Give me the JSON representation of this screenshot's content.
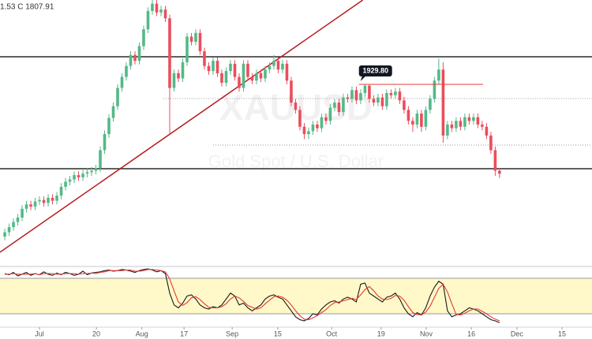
{
  "chart_data": [
    {
      "type": "candlestick",
      "legend_text": "1.53 C 1807.91",
      "watermark": "XAUUSD",
      "watermark_subtitle": "Gold Spot / U.S. Dollar",
      "up_color": "#53b987",
      "down_color": "#eb4d5c",
      "xlim": [
        -1.1,
        135.3
      ],
      "ylim": [
        1684.5,
        2045
      ],
      "open": [
        1722,
        1728,
        1735,
        1742,
        1748,
        1760,
        1766,
        1763,
        1770,
        1772,
        1768,
        1775,
        1771,
        1778,
        1790,
        1797,
        1800,
        1806,
        1803,
        1808,
        1810,
        1812,
        1815,
        1840,
        1862,
        1884,
        1900,
        1925,
        1940,
        1955,
        1970,
        1962,
        1982,
        2005,
        2030,
        2040,
        2028,
        2032,
        2020,
        1925,
        1945,
        1938,
        1960,
        1995,
        1988,
        2000,
        1975,
        1955,
        1948,
        1962,
        1945,
        1932,
        1948,
        1958,
        1940,
        1925,
        1958,
        1940,
        1935,
        1945,
        1938,
        1950,
        1955,
        1962,
        1950,
        1958,
        1935,
        1905,
        1895,
        1872,
        1862,
        1866,
        1875,
        1870,
        1885,
        1880,
        1898,
        1905,
        1892,
        1912,
        1910,
        1922,
        1908,
        1918,
        1928,
        1910,
        1905,
        1912,
        1900,
        1918,
        1915,
        1920,
        1908,
        1895,
        1880,
        1875,
        1890,
        1872,
        1895,
        1910,
        1935,
        1950,
        1860,
        1875,
        1870,
        1880,
        1872,
        1885,
        1880,
        1885,
        1875,
        1872,
        1860,
        1840,
        1812
      ],
      "high": [
        1733,
        1740,
        1747,
        1753,
        1765,
        1771,
        1771,
        1775,
        1777,
        1777,
        1780,
        1780,
        1783,
        1795,
        1802,
        1805,
        1811,
        1811,
        1813,
        1815,
        1817,
        1820,
        1845,
        1867,
        1889,
        1905,
        1930,
        1945,
        1960,
        1975,
        1975,
        1987,
        2010,
        2035,
        2045,
        2045,
        2037,
        2037,
        2025,
        1950,
        1950,
        1965,
        2000,
        2000,
        2005,
        2005,
        1980,
        1960,
        1967,
        1967,
        1950,
        1953,
        1963,
        1963,
        1945,
        1963,
        1963,
        1945,
        1950,
        1950,
        1955,
        1960,
        1970,
        1967,
        1963,
        1963,
        1940,
        1910,
        1900,
        1877,
        1871,
        1880,
        1880,
        1890,
        1890,
        1903,
        1910,
        1910,
        1917,
        1917,
        1927,
        1927,
        1923,
        1930,
        1930,
        1915,
        1917,
        1917,
        1923,
        1923,
        1925,
        1925,
        1913,
        1900,
        1885,
        1895,
        1895,
        1900,
        1915,
        1940,
        1965,
        1960,
        1880,
        1880,
        1885,
        1885,
        1890,
        1890,
        1890,
        1890,
        1880,
        1877,
        1865,
        1845,
        1815
      ],
      "low": [
        1717,
        1723,
        1730,
        1737,
        1743,
        1755,
        1758,
        1758,
        1765,
        1763,
        1763,
        1766,
        1766,
        1773,
        1785,
        1792,
        1795,
        1798,
        1798,
        1803,
        1805,
        1807,
        1810,
        1835,
        1857,
        1879,
        1895,
        1920,
        1935,
        1950,
        1957,
        1957,
        1977,
        2000,
        2025,
        2023,
        2023,
        2015,
        1862,
        1920,
        1933,
        1933,
        1955,
        1983,
        1983,
        1970,
        1950,
        1943,
        1943,
        1940,
        1927,
        1927,
        1943,
        1935,
        1920,
        1920,
        1935,
        1930,
        1930,
        1933,
        1933,
        1945,
        1950,
        1945,
        1945,
        1930,
        1900,
        1890,
        1867,
        1855,
        1855,
        1861,
        1865,
        1865,
        1875,
        1875,
        1893,
        1887,
        1887,
        1905,
        1905,
        1903,
        1903,
        1913,
        1905,
        1900,
        1900,
        1895,
        1895,
        1910,
        1910,
        1903,
        1890,
        1875,
        1865,
        1870,
        1865,
        1867,
        1890,
        1905,
        1930,
        1850,
        1855,
        1865,
        1865,
        1867,
        1867,
        1875,
        1875,
        1870,
        1867,
        1855,
        1835,
        1805,
        1802
      ],
      "close": [
        1728,
        1735,
        1742,
        1748,
        1760,
        1766,
        1763,
        1770,
        1772,
        1768,
        1775,
        1771,
        1778,
        1790,
        1797,
        1800,
        1806,
        1803,
        1808,
        1810,
        1812,
        1815,
        1840,
        1862,
        1884,
        1900,
        1925,
        1940,
        1955,
        1970,
        1962,
        1982,
        2005,
        2030,
        2040,
        2028,
        2032,
        2020,
        1925,
        1945,
        1938,
        1960,
        1995,
        1988,
        2000,
        1975,
        1955,
        1948,
        1962,
        1945,
        1932,
        1948,
        1958,
        1940,
        1925,
        1958,
        1940,
        1935,
        1945,
        1938,
        1950,
        1955,
        1962,
        1950,
        1958,
        1935,
        1905,
        1895,
        1872,
        1862,
        1866,
        1875,
        1870,
        1885,
        1880,
        1898,
        1905,
        1892,
        1912,
        1910,
        1922,
        1908,
        1918,
        1928,
        1910,
        1905,
        1912,
        1900,
        1918,
        1915,
        1920,
        1908,
        1895,
        1880,
        1875,
        1890,
        1872,
        1895,
        1910,
        1935,
        1950,
        1860,
        1875,
        1870,
        1880,
        1872,
        1885,
        1880,
        1885,
        1875,
        1872,
        1860,
        1840,
        1812,
        1807.91
      ],
      "levels": [
        {
          "value": 1967.5,
          "color": "#000000"
        },
        {
          "value": 1814.7,
          "color": "#000000"
        }
      ],
      "dotted_levels": [
        {
          "value": 1910.5,
          "start": 36.5
        },
        {
          "value": 1847,
          "start": 48
        }
      ],
      "price_label": {
        "value": 1929.8,
        "label": "1929.80",
        "start": 81.6,
        "end": 110.2,
        "color": "#e53935"
      },
      "trendline": {
        "x": [
          -1.1,
          82.5
        ],
        "y": [
          1700.7,
          2045
        ],
        "color": "#b71c1c"
      }
    },
    {
      "type": "line",
      "xlim": [
        -1.1,
        135.3
      ],
      "ylim": [
        0,
        100
      ],
      "band": [
        20,
        80
      ],
      "band_color": "#fff8c8",
      "series": [
        {
          "color": "#1a1a1a",
          "values": [
            88,
            86,
            90,
            84,
            87,
            90,
            85,
            88,
            86,
            91,
            87,
            85,
            89,
            86,
            90,
            88,
            85,
            87,
            92,
            86,
            89,
            90,
            91,
            93,
            94,
            92,
            93,
            95,
            94,
            92,
            90,
            93,
            95,
            96,
            94,
            91,
            93,
            88,
            55,
            35,
            30,
            38,
            50,
            52,
            45,
            35,
            30,
            28,
            32,
            30,
            35,
            45,
            55,
            50,
            35,
            38,
            30,
            25,
            30,
            35,
            45,
            50,
            52,
            48,
            45,
            35,
            25,
            15,
            10,
            8,
            12,
            20,
            18,
            28,
            35,
            40,
            42,
            38,
            45,
            48,
            45,
            40,
            70,
            72,
            55,
            50,
            45,
            40,
            48,
            50,
            55,
            45,
            30,
            20,
            15,
            22,
            18,
            30,
            50,
            65,
            75,
            70,
            25,
            15,
            18,
            20,
            25,
            30,
            28,
            25,
            20,
            15,
            10,
            8,
            5
          ]
        },
        {
          "color": "#e53935",
          "values": [
            87,
            87,
            88,
            87,
            87,
            87,
            87,
            88,
            86,
            88,
            88,
            88,
            87,
            87,
            88,
            88,
            88,
            87,
            88,
            88,
            89,
            88,
            90,
            91,
            93,
            93,
            93,
            93,
            94,
            94,
            92,
            92,
            93,
            95,
            95,
            94,
            93,
            91,
            79,
            59,
            40,
            34,
            39,
            47,
            49,
            44,
            37,
            31,
            30,
            30,
            32,
            37,
            45,
            50,
            47,
            41,
            34,
            31,
            28,
            30,
            37,
            43,
            49,
            50,
            48,
            43,
            35,
            25,
            17,
            11,
            10,
            13,
            17,
            22,
            27,
            34,
            39,
            40,
            42,
            44,
            46,
            44,
            52,
            61,
            66,
            59,
            50,
            45,
            44,
            46,
            51,
            50,
            43,
            32,
            22,
            19,
            18,
            23,
            33,
            48,
            63,
            70,
            57,
            37,
            19,
            18,
            21,
            25,
            28,
            28,
            24,
            20,
            15,
            11,
            8
          ]
        }
      ],
      "xticks": [
        {
          "value": 8,
          "label": "Jul"
        },
        {
          "value": 21.1,
          "label": "20"
        },
        {
          "value": 31.6,
          "label": "Aug"
        },
        {
          "value": 41.3,
          "label": "17"
        },
        {
          "value": 52.4,
          "label": "Sep"
        },
        {
          "value": 62.9,
          "label": "15"
        },
        {
          "value": 75.3,
          "label": "Oct"
        },
        {
          "value": 86.7,
          "label": "19"
        },
        {
          "value": 97.1,
          "label": "Nov"
        },
        {
          "value": 107.5,
          "label": "16"
        },
        {
          "value": 118,
          "label": "Dec"
        },
        {
          "value": 128.4,
          "label": "15"
        }
      ]
    }
  ]
}
